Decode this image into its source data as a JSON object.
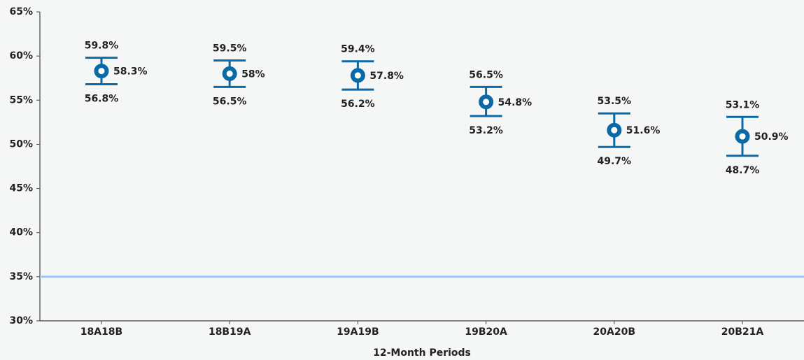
{
  "chart_data": {
    "type": "errorbar",
    "x_label": "12-Month Periods",
    "categories": [
      "18A18B",
      "18B19A",
      "19A19B",
      "19B20A",
      "20A20B",
      "20B21A"
    ],
    "values": [
      58.3,
      58,
      57.8,
      54.8,
      51.6,
      50.9
    ],
    "value_labels": [
      "58.3%",
      "58%",
      "57.8%",
      "54.8%",
      "51.6%",
      "50.9%"
    ],
    "upper": [
      59.8,
      59.5,
      59.4,
      56.5,
      53.5,
      53.1
    ],
    "upper_labels": [
      "59.8%",
      "59.5%",
      "59.4%",
      "56.5%",
      "53.5%",
      "53.1%"
    ],
    "lower": [
      56.8,
      56.5,
      56.2,
      53.2,
      49.7,
      48.7
    ],
    "lower_labels": [
      "56.8%",
      "56.5%",
      "56.2%",
      "53.2%",
      "49.7%",
      "48.7%"
    ],
    "color": "#0b6aa6",
    "ylim": [
      30,
      65
    ],
    "yticks": [
      {
        "value": 30,
        "label": "30%"
      },
      {
        "value": 35,
        "label": "35%"
      },
      {
        "value": 40,
        "label": "40%"
      },
      {
        "value": 45,
        "label": "45%"
      },
      {
        "value": 50,
        "label": "50%"
      },
      {
        "value": 55,
        "label": "55%"
      },
      {
        "value": 60,
        "label": "60%"
      },
      {
        "value": 65,
        "label": "65%"
      }
    ],
    "reference_line": {
      "value": 35,
      "color": "#9fc5f8"
    }
  }
}
